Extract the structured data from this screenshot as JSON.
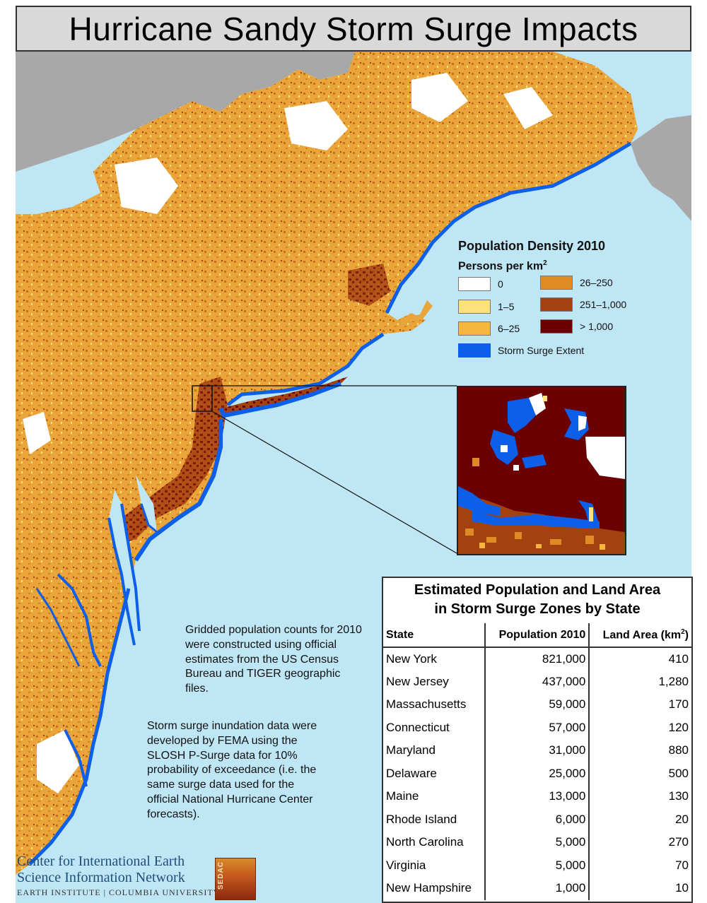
{
  "title": "Hurricane Sandy Storm Surge Impacts",
  "colors": {
    "ocean": "#bfe6f5",
    "other_land": "#a8a8a8",
    "density_0": "#ffffff",
    "density_1_5": "#fde27a",
    "density_6_25": "#f6b53c",
    "density_26_250": "#de8a25",
    "density_251_1000": "#a3410f",
    "density_gt_1000": "#6b0000",
    "storm_surge": "#0b5fe8"
  },
  "legend": {
    "title": "Population Density 2010",
    "subtitle_text": "Persons per km",
    "subtitle_sup": "2",
    "items": [
      {
        "label": "0",
        "color": "#ffffff"
      },
      {
        "label": "1–5",
        "color": "#fde27a"
      },
      {
        "label": "6–25",
        "color": "#f6b53c"
      },
      {
        "label": "26–250",
        "color": "#de8a25"
      },
      {
        "label": "251–1,000",
        "color": "#a3410f"
      },
      {
        "label": "> 1,000",
        "color": "#6b0000"
      },
      {
        "label": "Storm Surge Extent",
        "color": "#0b5fe8"
      }
    ]
  },
  "notes": {
    "note_1": "Gridded population counts for 2010 were constructed using official estimates from the US Census Bureau and TIGER geographic files.",
    "note_2": "Storm surge inundation data were developed by FEMA using the SLOSH P-Surge data for 10% probability of exceedance (i.e. the same surge data used for the official National Hurricane Center forecasts)."
  },
  "table": {
    "caption_line1": "Estimated Population and Land Area",
    "caption_line2": "in Storm Surge Zones by State",
    "headers": {
      "state": "State",
      "population": "Population 2010",
      "land_area": "Land Area (km",
      "land_area_sup": "2",
      "land_area_close": ")"
    },
    "rows": [
      {
        "state": "New York",
        "population": "821,000",
        "land_area": "410"
      },
      {
        "state": "New Jersey",
        "population": "437,000",
        "land_area": "1,280"
      },
      {
        "state": "Massachusetts",
        "population": "59,000",
        "land_area": "170"
      },
      {
        "state": "Connecticut",
        "population": "57,000",
        "land_area": "120"
      },
      {
        "state": "Maryland",
        "population": "31,000",
        "land_area": "880"
      },
      {
        "state": "Delaware",
        "population": "25,000",
        "land_area": "500"
      },
      {
        "state": "Maine",
        "population": "13,000",
        "land_area": "130"
      },
      {
        "state": "Rhode Island",
        "population": "6,000",
        "land_area": "20"
      },
      {
        "state": "North Carolina",
        "population": "5,000",
        "land_area": "270"
      },
      {
        "state": "Virginia",
        "population": "5,000",
        "land_area": "70"
      },
      {
        "state": "New Hampshire",
        "population": "1,000",
        "land_area": "10"
      }
    ]
  },
  "logo": {
    "line1": "Center for International Earth",
    "line2": "Science Information Network",
    "line3": "EARTH INSTITUTE | COLUMBIA UNIVERSITY",
    "badge": "SEDAC"
  }
}
